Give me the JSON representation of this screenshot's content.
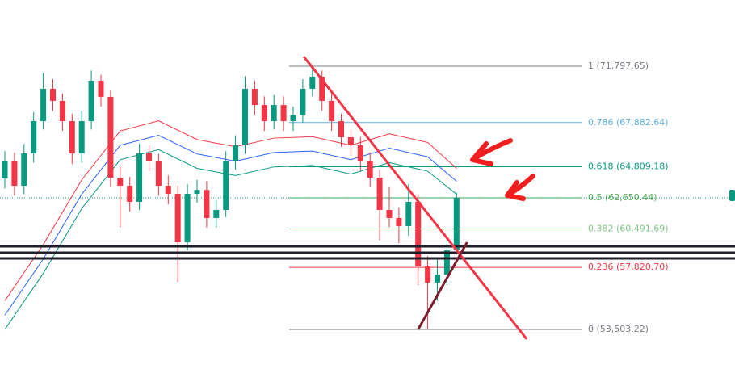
{
  "chart_data": {
    "type": "candlestick",
    "ylim": [
      49294,
      76400
    ],
    "up_color": "#089981",
    "down_color": "#f23645",
    "candles": [
      [
        64000,
        65900,
        63300,
        65180
      ],
      [
        65180,
        65800,
        62800,
        63490
      ],
      [
        63490,
        66400,
        62900,
        65740
      ],
      [
        65740,
        68600,
        65100,
        67980
      ],
      [
        67980,
        71300,
        67400,
        70230
      ],
      [
        70230,
        70900,
        68700,
        69390
      ],
      [
        69390,
        69900,
        67300,
        67980
      ],
      [
        67980,
        68500,
        65000,
        65740
      ],
      [
        65740,
        68700,
        65100,
        67980
      ],
      [
        67980,
        71500,
        67400,
        70790
      ],
      [
        70790,
        71200,
        69000,
        69670
      ],
      [
        69670,
        70100,
        63400,
        64050
      ],
      [
        64050,
        64800,
        60600,
        63490
      ],
      [
        63490,
        64100,
        61700,
        62370
      ],
      [
        62370,
        66400,
        61800,
        65740
      ],
      [
        65740,
        66300,
        64500,
        65180
      ],
      [
        65180,
        65700,
        62800,
        63490
      ],
      [
        63490,
        64200,
        62200,
        62930
      ],
      [
        62930,
        63500,
        56800,
        59560
      ],
      [
        59560,
        63600,
        59000,
        62930
      ],
      [
        62930,
        63900,
        62300,
        63200
      ],
      [
        63200,
        63800,
        60600,
        61250
      ],
      [
        61250,
        62500,
        60600,
        61810
      ],
      [
        61810,
        65900,
        61300,
        65180
      ],
      [
        65180,
        67000,
        64600,
        66300
      ],
      [
        66300,
        71100,
        65700,
        70230
      ],
      [
        70230,
        70800,
        68400,
        69100
      ],
      [
        69100,
        69700,
        67300,
        67980
      ],
      [
        67980,
        69800,
        67400,
        69100
      ],
      [
        69100,
        69700,
        67300,
        67980
      ],
      [
        67980,
        69000,
        67300,
        68400
      ],
      [
        68400,
        70900,
        67900,
        70230
      ],
      [
        70230,
        71800,
        69700,
        71070
      ],
      [
        71070,
        71500,
        68700,
        69390
      ],
      [
        69390,
        69900,
        67300,
        67980
      ],
      [
        67980,
        68500,
        66200,
        66860
      ],
      [
        66860,
        67400,
        65600,
        66300
      ],
      [
        66300,
        66900,
        64500,
        65180
      ],
      [
        65180,
        65800,
        63400,
        64050
      ],
      [
        64050,
        64600,
        59700,
        61810
      ],
      [
        61810,
        63400,
        60600,
        61250
      ],
      [
        61250,
        62000,
        59500,
        60690
      ],
      [
        60690,
        63600,
        60000,
        62370
      ],
      [
        62370,
        62900,
        56600,
        57880
      ],
      [
        57880,
        58600,
        53503,
        56760
      ],
      [
        56760,
        58500,
        55500,
        57320
      ],
      [
        57320,
        59900,
        56600,
        59000
      ],
      [
        59000,
        63000,
        58700,
        62650
      ]
    ],
    "moving_averages": {
      "x": [
        0,
        4,
        8,
        12,
        16,
        20,
        24,
        28,
        32,
        36,
        40,
        44,
        47
      ],
      "series": [
        {
          "color": "#f23645",
          "values": [
            55500,
            59400,
            63900,
            67300,
            68000,
            66700,
            66200,
            66800,
            66900,
            66300,
            67100,
            66500,
            64700
          ]
        },
        {
          "color": "#2962ff",
          "values": [
            54500,
            58400,
            62900,
            66300,
            67000,
            65700,
            65200,
            65800,
            65900,
            65300,
            66100,
            65500,
            63800
          ]
        },
        {
          "color": "#089981",
          "values": [
            53500,
            57400,
            61900,
            65300,
            66000,
            64700,
            64200,
            64800,
            64900,
            64300,
            65100,
            64500,
            62900
          ]
        }
      ]
    },
    "horizontal_lines": [
      59283,
      58834,
      58442
    ],
    "trend_lines": [
      {
        "color": "#f23645",
        "x": [
          31.1,
          54.3
        ],
        "values": [
          72472,
          52830
        ]
      },
      {
        "color": "#7b1e2b",
        "x": [
          43,
          48.1
        ],
        "values": [
          53503,
          59564
        ]
      }
    ],
    "fib_levels": [
      {
        "value": 71797.65,
        "label": "1 (71,797.65)",
        "color": "#787b86"
      },
      {
        "value": 67882.64,
        "label": "0.786 (67,882.64)",
        "color": "#5fb3e4"
      },
      {
        "value": 64809.18,
        "label": "0.618 (64,809.18)",
        "color": "#089981"
      },
      {
        "value": 62650.44,
        "label": "0.5 (62,650.44)",
        "color": "#4caf50"
      },
      {
        "value": 60491.69,
        "label": "0.382 (60,491.69)",
        "color": "#81c784"
      },
      {
        "value": 57820.7,
        "label": "0.236 (57,820.70)",
        "color": "#f23645"
      },
      {
        "value": 53503.22,
        "label": "0 (53,503.22)",
        "color": "#787b86"
      }
    ]
  }
}
